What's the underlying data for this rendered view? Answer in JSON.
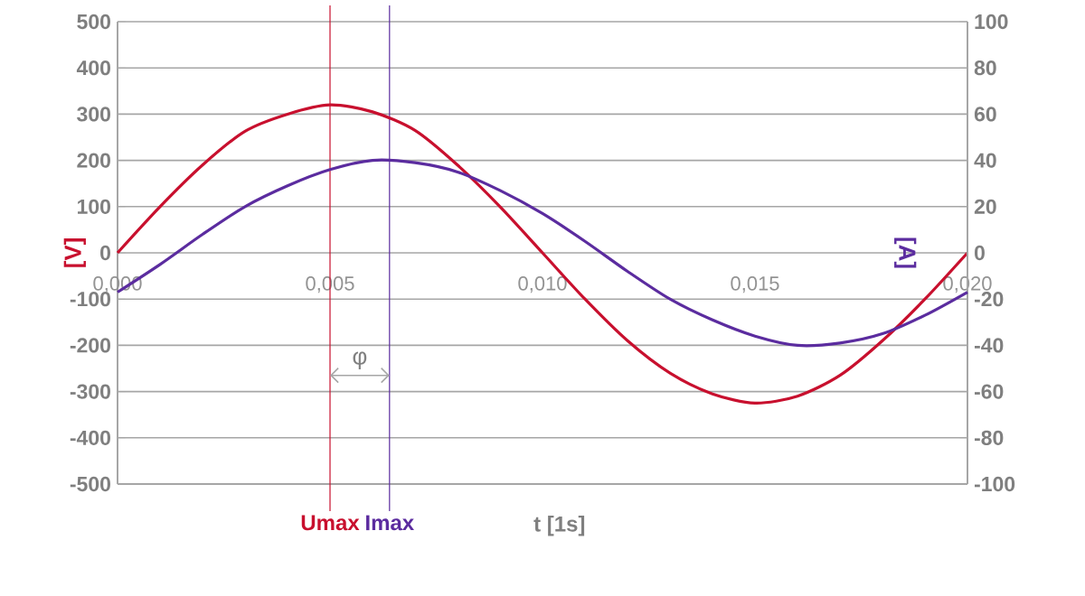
{
  "chart_data": {
    "type": "line",
    "xlabel": "t [1s]",
    "ylabel": "[V]",
    "y2label": "[A]",
    "x": [
      0,
      0.001,
      0.002,
      0.003,
      0.004,
      0.005,
      0.006,
      0.007,
      0.008,
      0.009,
      0.01,
      0.011,
      0.012,
      0.013,
      0.014,
      0.015,
      0.016,
      0.017,
      0.018,
      0.019,
      0.02
    ],
    "series": [
      {
        "color": "#c8102e",
        "values": [
          0,
          100,
          190,
          263,
          300,
          320,
          305,
          265,
          190,
          100,
          0,
          -100,
          -190,
          -260,
          -305,
          -325,
          -310,
          -265,
          -190,
          -100,
          0
        ]
      },
      {
        "color": "#5b2c9f",
        "axis": "y2",
        "values": [
          -17,
          -5,
          8,
          20,
          29,
          36,
          40,
          39,
          35,
          27,
          17,
          5,
          -8,
          -20,
          -29,
          -36,
          -40,
          -39,
          -35,
          -27,
          -17
        ]
      }
    ],
    "xlim": [
      0,
      0.02
    ],
    "xticks": [
      {
        "value": 0,
        "label": "0,000"
      },
      {
        "value": 0.005,
        "label": "0,005"
      },
      {
        "value": 0.01,
        "label": "0,010"
      },
      {
        "value": 0.015,
        "label": "0,015"
      },
      {
        "value": 0.02,
        "label": "0,020"
      }
    ],
    "ylim": [
      -500,
      500
    ],
    "yticks": [
      -500,
      -400,
      -300,
      -200,
      -100,
      0,
      100,
      200,
      300,
      400,
      500
    ],
    "y2lim": [
      -100,
      100
    ],
    "y2ticks": [
      -100,
      -80,
      -60,
      -40,
      -20,
      0,
      20,
      40,
      60,
      80,
      100
    ],
    "ref_lines": [
      {
        "axis": "x",
        "value": 0.005,
        "label": "Umax",
        "color": "#c8102e"
      },
      {
        "axis": "x",
        "value": 0.0064,
        "label": "Imax",
        "color": "#5b2c9f"
      }
    ],
    "annotations": [
      "φ"
    ],
    "grid": "y"
  }
}
